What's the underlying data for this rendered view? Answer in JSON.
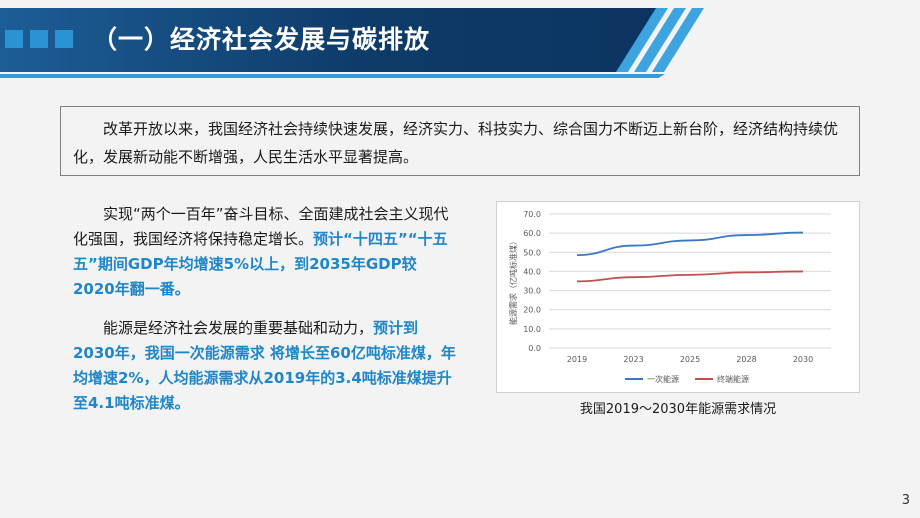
{
  "header": {
    "title": "（一）经济社会发展与碳排放"
  },
  "intro": {
    "text": "改革开放以来，我国经济社会持续快速发展，经济实力、科技实力、综合国力不断迈上新台阶，经济结构持续优化，发展新动能不断增强，人民生活水平显著提高。"
  },
  "paragraphs": {
    "p1_plain": "实现“两个一百年”奋斗目标、全面建成社会主义现代化强国，我国经济将保持稳定增长。",
    "p1_highlight": "预计“十四五”“十五五”期间GDP年均增速5%以上，到2035年GDP较2020年翻一番。",
    "p2_plain": "能源是经济社会发展的重要基础和动力，",
    "p2_highlight": "预计到2030年，我国一次能源需求 将增长至60亿吨标准煤，年均增速2%，人均能源需求从2019年的3.4吨标准煤提升至4.1吨标准煤。"
  },
  "chart_caption": "我国2019～2030年能源需求情况",
  "page_number": "3",
  "colors": {
    "header_dark": "#0e3b69",
    "accent_blue": "#2f9bd8",
    "highlight_text": "#1f86c8",
    "series_primary": "#3a78c3",
    "series_terminal": "#c0504d"
  },
  "chart_data": {
    "type": "line",
    "title": "",
    "xlabel": "",
    "ylabel": "能源需求（亿吨标准煤）",
    "x": [
      "2019",
      "2023",
      "2025",
      "2028",
      "2030"
    ],
    "ylim": [
      0,
      70
    ],
    "yticks": [
      "0.0",
      "10.0",
      "20.0",
      "30.0",
      "40.0",
      "50.0",
      "60.0",
      "70.0"
    ],
    "grid": true,
    "legend": "bottom",
    "series": [
      {
        "name": "一次能源",
        "values": [
          48.5,
          53.5,
          56.2,
          59.0,
          60.3
        ],
        "color": "#3a78c3"
      },
      {
        "name": "终端能源",
        "values": [
          34.8,
          37.0,
          38.2,
          39.5,
          40.0
        ],
        "color": "#c0504d"
      }
    ]
  }
}
